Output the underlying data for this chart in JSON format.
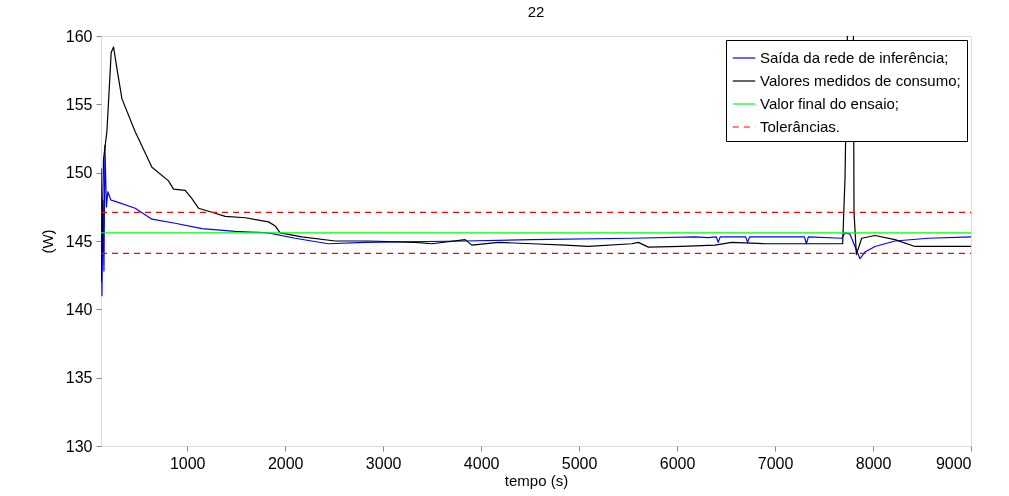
{
  "chart_data": {
    "type": "line",
    "title": "22",
    "xlabel": "tempo (s)",
    "ylabel": "(W)",
    "xlim": [
      120,
      9000
    ],
    "xticks": [
      1000,
      2000,
      3000,
      4000,
      5000,
      6000,
      7000,
      8000,
      9000
    ],
    "ylim": [
      130,
      160
    ],
    "yticks": [
      130,
      135,
      140,
      145,
      150,
      155,
      160
    ],
    "grid": false,
    "legend": "top right",
    "marker": "none",
    "series": [
      {
        "name": "Saída da rede de inferência;",
        "color": "#0000ff",
        "line_style": "solid",
        "x": [
          122,
          130,
          140,
          150,
          160,
          175,
          190,
          220,
          266,
          469,
          640,
          877,
          1150,
          1490,
          1830,
          2100,
          2440,
          2816,
          3837,
          4517,
          5537,
          6184,
          6316,
          6400,
          6420,
          6440,
          6700,
          6720,
          6740,
          7300,
          7320,
          7340,
          7680,
          7714,
          7765,
          7816,
          7867,
          7918,
          8020,
          8224,
          8564,
          9000
        ],
        "values": [
          150.3,
          141,
          148,
          142.8,
          152,
          147.5,
          148.6,
          148,
          147.9,
          147.4,
          146.6,
          146.3,
          145.9,
          145.7,
          145.6,
          145.2,
          144.8,
          144.9,
          145.0,
          145.1,
          145.2,
          145.3,
          145.25,
          145.3,
          144.9,
          145.3,
          145.3,
          144.9,
          145.3,
          145.3,
          144.8,
          145.3,
          145.2,
          145.6,
          145.5,
          144.6,
          143.7,
          144.2,
          144.6,
          145.0,
          145.2,
          145.3
        ]
      },
      {
        "name": "Valores medidos de consumo;",
        "color": "#000000",
        "line_style": "solid",
        "x": [
          122,
          146,
          180,
          197,
          224,
          248,
          283,
          334,
          469,
          640,
          809,
          860,
          980,
          1048,
          1115,
          1252,
          1388,
          1592,
          1830,
          1898,
          1949,
          2170,
          2510,
          2850,
          3327,
          3497,
          3837,
          3905,
          4177,
          4517,
          4857,
          5095,
          5537,
          5605,
          5707,
          6047,
          6387,
          6557,
          6898,
          7690,
          7714,
          7738,
          7770,
          7800,
          7806,
          7830,
          7884,
          8020,
          8224,
          8428,
          8564,
          9000
        ],
        "values": [
          142,
          151,
          153,
          155.2,
          158.8,
          159.2,
          157.6,
          155.4,
          153,
          150.4,
          149.4,
          148.8,
          148.7,
          148.1,
          147.4,
          147.1,
          146.8,
          146.7,
          146.4,
          146.1,
          145.6,
          145.3,
          145.0,
          145.0,
          144.9,
          144.8,
          145.1,
          144.7,
          144.9,
          144.8,
          144.7,
          144.6,
          144.8,
          144.9,
          144.55,
          144.6,
          144.7,
          144.9,
          144.8,
          144.8,
          149.6,
          160,
          null,
          160,
          147.1,
          144,
          145.2,
          145.4,
          145.1,
          144.6,
          144.6,
          144.6
        ]
      },
      {
        "name": "Valor final do ensaio;",
        "color": "#00ff00",
        "line_style": "solid",
        "x": [
          120,
          9000
        ],
        "values": [
          145.6,
          145.6
        ]
      },
      {
        "name": "Tolerâncias.",
        "color": "#ff0000",
        "line_style": "dashed",
        "x": [
          120,
          9000
        ],
        "values": [
          147.1,
          147.1
        ]
      },
      {
        "color": "#ff0000",
        "line_style": "dashed",
        "x": [
          120,
          9000
        ],
        "values": [
          144.1,
          144.1
        ]
      }
    ]
  }
}
